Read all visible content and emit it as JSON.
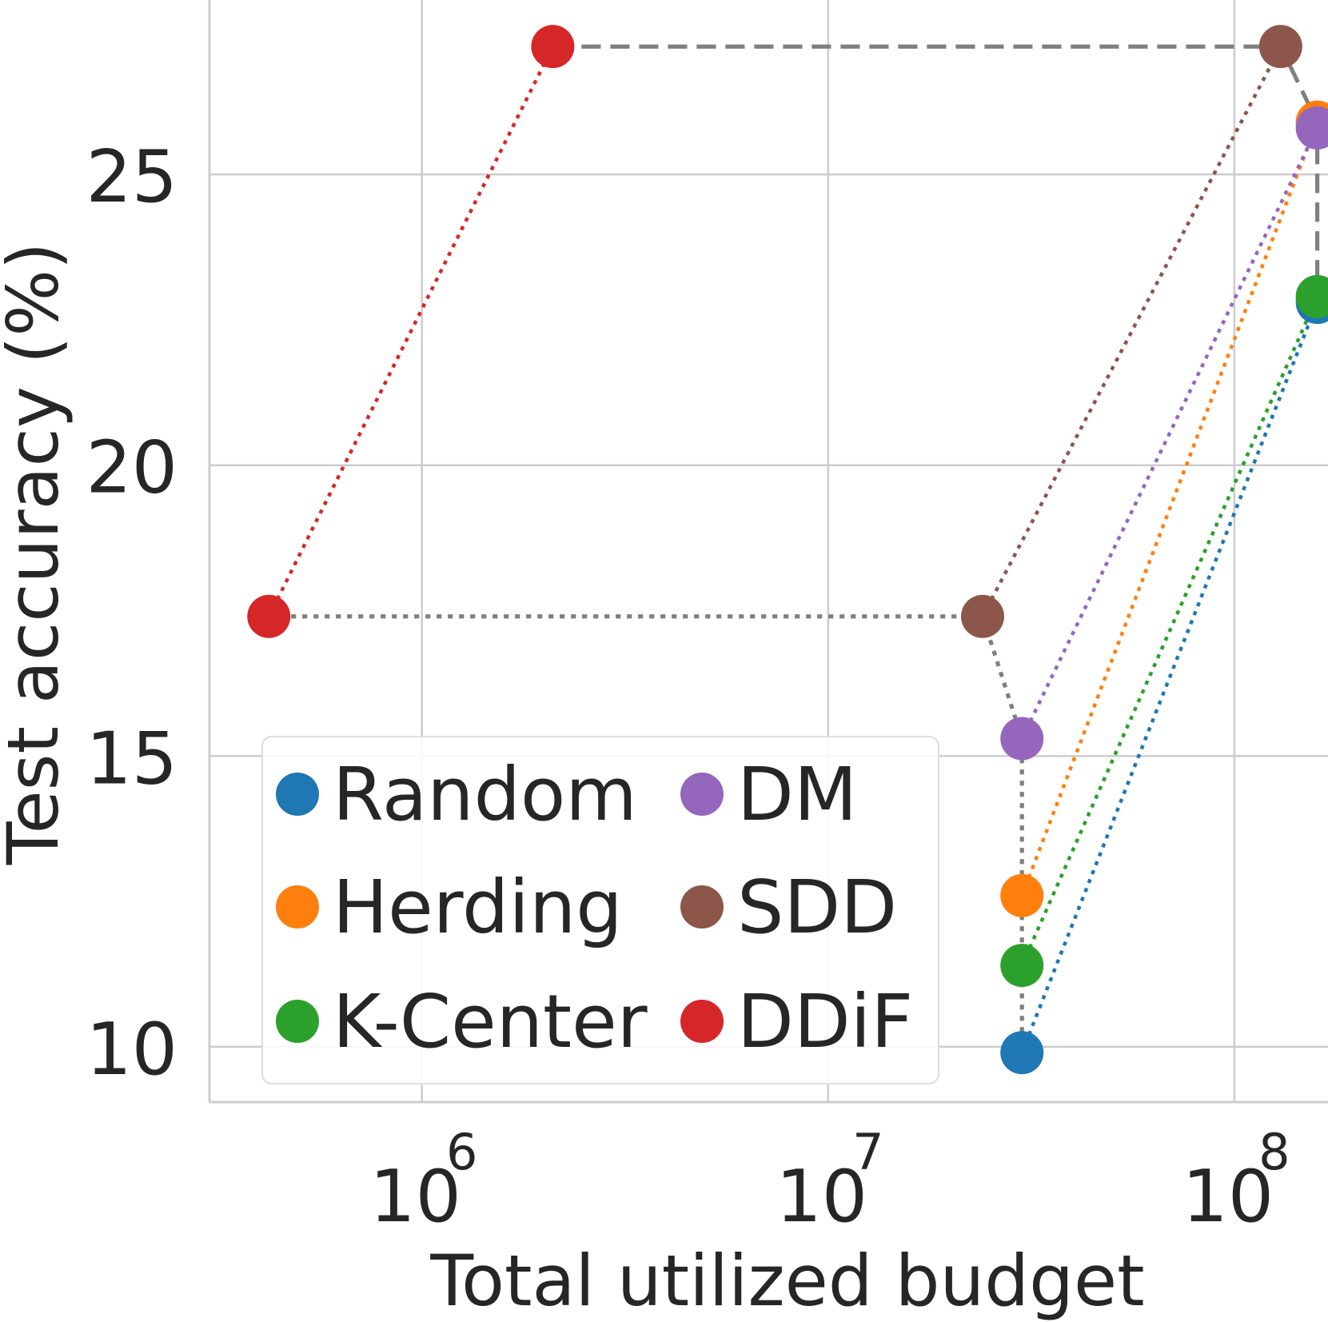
{
  "chart_data": {
    "type": "scatter",
    "title": "",
    "xlabel": "Total utilized budget",
    "ylabel": "Test accuracy (%)",
    "xscale": "log",
    "xlim": [
      300000,
      170000000
    ],
    "ylim": [
      9.05,
      28.0
    ],
    "grid": true,
    "x_ticks": [
      {
        "value": 1000000,
        "base": "10",
        "exp": "6"
      },
      {
        "value": 10000000,
        "base": "10",
        "exp": "7"
      },
      {
        "value": 100000000,
        "base": "10",
        "exp": "8"
      }
    ],
    "y_ticks": [
      10,
      15,
      20,
      25
    ],
    "legend_position": "lower-left",
    "series": [
      {
        "name": "Random",
        "color": "#1f77b4",
        "points": [
          [
            30000000,
            9.9
          ],
          [
            160000000,
            22.8
          ]
        ]
      },
      {
        "name": "Herding",
        "color": "#ff7f0e",
        "points": [
          [
            30000000,
            12.6
          ],
          [
            160000000,
            25.9
          ]
        ]
      },
      {
        "name": "K-Center",
        "color": "#2ca02c",
        "points": [
          [
            30000000,
            11.4
          ],
          [
            160000000,
            22.9
          ]
        ]
      },
      {
        "name": "DM",
        "color": "#9467bd",
        "points": [
          [
            30000000,
            15.3
          ],
          [
            160000000,
            25.8
          ]
        ]
      },
      {
        "name": "SDD",
        "color": "#8c564b",
        "points": [
          [
            24000000,
            17.4
          ],
          [
            130000000,
            27.2
          ]
        ]
      },
      {
        "name": "DDiF",
        "color": "#d62728",
        "points": [
          [
            420000,
            17.4
          ],
          [
            2100000,
            27.2
          ]
        ]
      }
    ],
    "frontier_lines": [
      {
        "style": "dotted",
        "color": "#7f7f7f",
        "points": [
          [
            420000,
            17.4
          ],
          [
            24000000,
            17.4
          ],
          [
            30000000,
            15.3
          ],
          [
            30000000,
            9.9
          ]
        ]
      },
      {
        "style": "dashed",
        "color": "#7f7f7f",
        "points": [
          [
            2100000,
            27.2
          ],
          [
            130000000,
            27.2
          ],
          [
            160000000,
            25.9
          ],
          [
            160000000,
            22.8
          ]
        ]
      }
    ]
  }
}
